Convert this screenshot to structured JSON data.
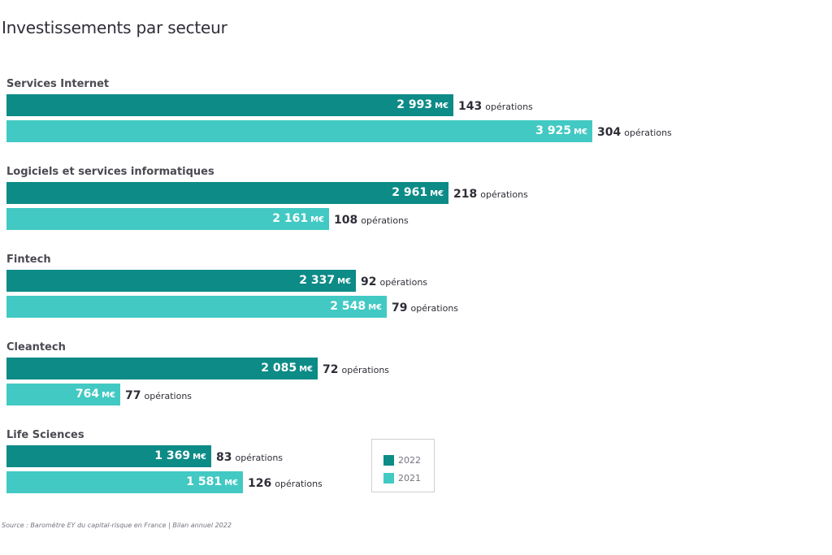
{
  "title": "Investissements par secteur",
  "source": "Source : Baromètre EY du capital-risque en France | Bilan annuel 2022",
  "unit": "M€",
  "ops_suffix": "opérations",
  "colors": {
    "2022": "#0d8b87",
    "2021": "#42c9c3"
  },
  "legend": [
    {
      "label": "2022",
      "color": "#0d8b87"
    },
    {
      "label": "2021",
      "color": "#42c9c3"
    }
  ],
  "chart_data": {
    "type": "bar",
    "orientation": "horizontal",
    "title": "Investissements par secteur",
    "categories": [
      "Services Internet",
      "Logiciels et services informatiques",
      "Fintech",
      "Cleantech",
      "Life Sciences"
    ],
    "series": [
      {
        "name": "2022",
        "values": [
          2993,
          2961,
          2337,
          2085,
          1369
        ],
        "value_labels": [
          "2 993",
          "2 961",
          "2 337",
          "2 085",
          "1 369"
        ],
        "operations": [
          143,
          218,
          92,
          72,
          83
        ]
      },
      {
        "name": "2021",
        "values": [
          3925,
          2161,
          2548,
          764,
          1581
        ],
        "value_labels": [
          "3 925",
          "2 161",
          "2 548",
          "764",
          "1 581"
        ],
        "operations": [
          304,
          108,
          79,
          77,
          126
        ]
      }
    ],
    "legend_position": "bottom-center",
    "grid": false
  }
}
